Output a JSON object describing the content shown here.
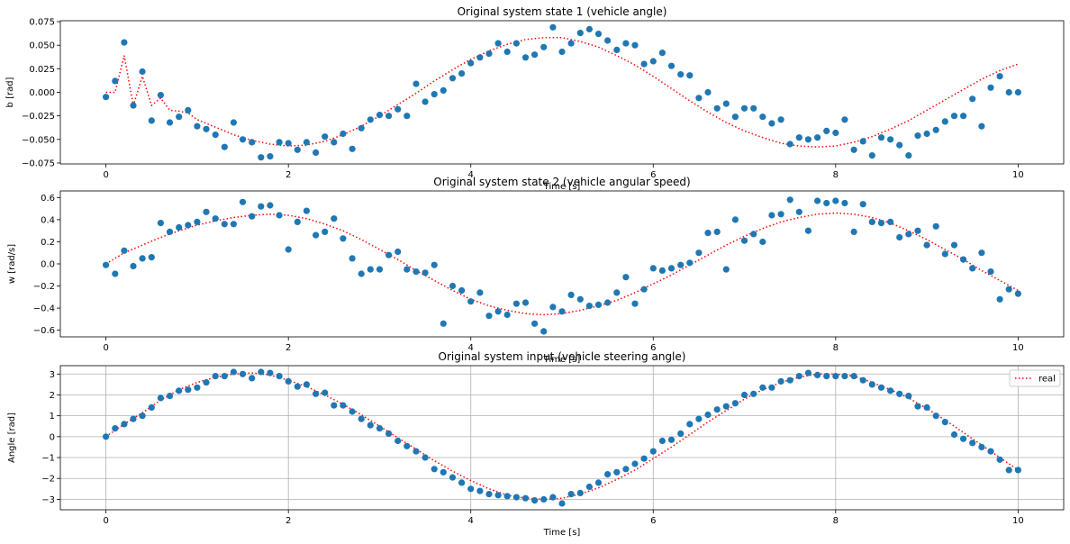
{
  "chart_data": [
    {
      "type": "scatter",
      "title": "Original system state 1 (vehicle angle)",
      "xlabel": "Time [s]",
      "ylabel": "b [rad]",
      "xlim": [
        -0.5,
        10.5
      ],
      "ylim": [
        -0.076,
        0.076
      ],
      "xticks": [
        0,
        2,
        4,
        6,
        8,
        10
      ],
      "xtick_labels": [
        "0",
        "2",
        "4",
        "6",
        "8",
        "10"
      ],
      "yticks": [
        -0.075,
        -0.05,
        -0.025,
        0.0,
        0.025,
        0.05,
        0.075
      ],
      "ytick_labels": [
        "−0.075",
        "−0.050",
        "−0.025",
        "0.000",
        "0.025",
        "0.050",
        "0.075"
      ],
      "grid": false,
      "legend": null,
      "series": [
        {
          "kind": "line",
          "style": "dotted",
          "color": "#ff0000",
          "x": [
            0,
            0.1,
            0.2,
            0.3,
            0.4,
            0.5,
            0.6,
            0.7,
            0.8,
            0.9,
            1.0,
            1.2,
            1.4,
            1.6,
            1.8,
            2.0,
            2.2,
            2.4,
            2.6,
            2.8,
            3.0,
            3.2,
            3.4,
            3.6,
            3.8,
            4.0,
            4.2,
            4.4,
            4.6,
            4.8,
            5.0,
            5.2,
            5.4,
            5.6,
            5.8,
            6.0,
            6.2,
            6.4,
            6.6,
            6.8,
            7.0,
            7.2,
            7.4,
            7.6,
            7.8,
            8.0,
            8.2,
            8.4,
            8.6,
            8.8,
            9.0,
            9.2,
            9.4,
            9.6,
            9.8,
            10.0
          ],
          "y": [
            0.0,
            0.0,
            0.039,
            -0.014,
            0.017,
            -0.014,
            -0.006,
            -0.019,
            -0.02,
            -0.022,
            -0.029,
            -0.037,
            -0.045,
            -0.051,
            -0.055,
            -0.057,
            -0.056,
            -0.052,
            -0.045,
            -0.036,
            -0.025,
            -0.013,
            -0.001,
            0.012,
            0.024,
            0.035,
            0.044,
            0.051,
            0.056,
            0.058,
            0.058,
            0.054,
            0.048,
            0.039,
            0.029,
            0.017,
            0.004,
            -0.009,
            -0.021,
            -0.032,
            -0.041,
            -0.048,
            -0.054,
            -0.057,
            -0.058,
            -0.057,
            -0.053,
            -0.047,
            -0.039,
            -0.03,
            -0.019,
            -0.008,
            0.003,
            0.014,
            0.023,
            0.03
          ]
        },
        {
          "kind": "scatter",
          "color": "#1f77b4",
          "x": [
            0.0,
            0.1,
            0.2,
            0.3,
            0.4,
            0.5,
            0.6,
            0.7,
            0.8,
            0.9,
            1.0,
            1.1,
            1.2,
            1.3,
            1.4,
            1.5,
            1.6,
            1.7,
            1.8,
            1.9,
            2.0,
            2.1,
            2.2,
            2.3,
            2.4,
            2.5,
            2.6,
            2.7,
            2.8,
            2.9,
            3.0,
            3.1,
            3.2,
            3.3,
            3.4,
            3.5,
            3.6,
            3.7,
            3.8,
            3.9,
            4.0,
            4.1,
            4.2,
            4.3,
            4.4,
            4.5,
            4.6,
            4.7,
            4.8,
            4.9,
            5.0,
            5.1,
            5.2,
            5.3,
            5.4,
            5.5,
            5.6,
            5.7,
            5.8,
            5.9,
            6.0,
            6.1,
            6.2,
            6.3,
            6.4,
            6.5,
            6.6,
            6.7,
            6.8,
            6.9,
            7.0,
            7.1,
            7.2,
            7.3,
            7.4,
            7.5,
            7.6,
            7.7,
            7.8,
            7.9,
            8.0,
            8.1,
            8.2,
            8.3,
            8.4,
            8.5,
            8.6,
            8.7,
            8.8,
            8.9,
            9.0,
            9.1,
            9.2,
            9.3,
            9.4,
            9.5,
            9.6,
            9.7,
            9.8,
            9.9,
            10.0
          ],
          "y": [
            -0.005,
            0.012,
            0.053,
            -0.014,
            0.022,
            -0.03,
            -0.003,
            -0.032,
            -0.026,
            -0.019,
            -0.036,
            -0.039,
            -0.045,
            -0.058,
            -0.032,
            -0.05,
            -0.053,
            -0.069,
            -0.068,
            -0.053,
            -0.054,
            -0.061,
            -0.053,
            -0.064,
            -0.047,
            -0.053,
            -0.044,
            -0.06,
            -0.038,
            -0.029,
            -0.024,
            -0.025,
            -0.018,
            -0.025,
            0.009,
            -0.01,
            -0.002,
            0.002,
            0.015,
            0.02,
            0.031,
            0.037,
            0.041,
            0.052,
            0.043,
            0.052,
            0.037,
            0.04,
            0.048,
            0.069,
            0.043,
            0.052,
            0.063,
            0.067,
            0.062,
            0.055,
            0.045,
            0.052,
            0.05,
            0.03,
            0.033,
            0.042,
            0.028,
            0.019,
            0.018,
            -0.006,
            0.0,
            -0.017,
            -0.012,
            -0.026,
            -0.017,
            -0.017,
            -0.026,
            -0.033,
            -0.029,
            -0.055,
            -0.048,
            -0.05,
            -0.048,
            -0.041,
            -0.043,
            -0.029,
            -0.061,
            -0.052,
            -0.067,
            -0.048,
            -0.05,
            -0.056,
            -0.067,
            -0.046,
            -0.044,
            -0.04,
            -0.031,
            -0.025,
            -0.025,
            -0.007,
            -0.036,
            0.005,
            0.017,
            0.0,
            0.0
          ]
        }
      ]
    },
    {
      "type": "scatter",
      "title": "Original system state 2 (vehicle angular speed)",
      "xlabel": "Time [s]",
      "ylabel": "w [rad/s]",
      "xlim": [
        -0.5,
        10.5
      ],
      "ylim": [
        -0.66,
        0.66
      ],
      "xticks": [
        0,
        2,
        4,
        6,
        8,
        10
      ],
      "xtick_labels": [
        "0",
        "2",
        "4",
        "6",
        "8",
        "10"
      ],
      "yticks": [
        -0.6,
        -0.4,
        -0.2,
        0.0,
        0.2,
        0.4,
        0.6
      ],
      "ytick_labels": [
        "−0.6",
        "−0.4",
        "−0.2",
        "0.0",
        "0.2",
        "0.4",
        "0.6"
      ],
      "grid": false,
      "legend": null,
      "series": [
        {
          "kind": "line",
          "style": "dotted",
          "color": "#ff0000",
          "x": [
            0,
            0.2,
            0.4,
            0.6,
            0.8,
            1.0,
            1.2,
            1.4,
            1.6,
            1.8,
            2.0,
            2.2,
            2.4,
            2.6,
            2.8,
            3.0,
            3.2,
            3.4,
            3.6,
            3.8,
            4.0,
            4.2,
            4.4,
            4.6,
            4.8,
            5.0,
            5.2,
            5.4,
            5.6,
            5.8,
            6.0,
            6.2,
            6.4,
            6.6,
            6.8,
            7.0,
            7.2,
            7.4,
            7.6,
            7.8,
            8.0,
            8.2,
            8.4,
            8.6,
            8.8,
            9.0,
            9.2,
            9.4,
            9.6,
            9.8,
            10.0
          ],
          "y": [
            0.0,
            0.1,
            0.17,
            0.24,
            0.3,
            0.35,
            0.39,
            0.42,
            0.44,
            0.45,
            0.44,
            0.41,
            0.36,
            0.3,
            0.22,
            0.13,
            0.04,
            -0.06,
            -0.15,
            -0.24,
            -0.32,
            -0.38,
            -0.42,
            -0.45,
            -0.46,
            -0.45,
            -0.42,
            -0.38,
            -0.33,
            -0.26,
            -0.18,
            -0.1,
            -0.01,
            0.08,
            0.17,
            0.25,
            0.32,
            0.38,
            0.42,
            0.45,
            0.46,
            0.45,
            0.42,
            0.37,
            0.3,
            0.22,
            0.13,
            0.04,
            -0.06,
            -0.15,
            -0.24
          ]
        },
        {
          "kind": "scatter",
          "color": "#1f77b4",
          "x": [
            0.0,
            0.1,
            0.2,
            0.3,
            0.4,
            0.5,
            0.6,
            0.7,
            0.8,
            0.9,
            1.0,
            1.1,
            1.2,
            1.3,
            1.4,
            1.5,
            1.6,
            1.7,
            1.8,
            1.9,
            2.0,
            2.1,
            2.2,
            2.3,
            2.4,
            2.5,
            2.6,
            2.7,
            2.8,
            2.9,
            3.0,
            3.1,
            3.2,
            3.3,
            3.4,
            3.5,
            3.6,
            3.7,
            3.8,
            3.9,
            4.0,
            4.1,
            4.2,
            4.3,
            4.4,
            4.5,
            4.6,
            4.7,
            4.8,
            4.9,
            5.0,
            5.1,
            5.2,
            5.3,
            5.4,
            5.5,
            5.6,
            5.7,
            5.8,
            5.9,
            6.0,
            6.1,
            6.2,
            6.3,
            6.4,
            6.5,
            6.6,
            6.7,
            6.8,
            6.9,
            7.0,
            7.1,
            7.2,
            7.3,
            7.4,
            7.5,
            7.6,
            7.7,
            7.8,
            7.9,
            8.0,
            8.1,
            8.2,
            8.3,
            8.4,
            8.5,
            8.6,
            8.7,
            8.8,
            8.9,
            9.0,
            9.1,
            9.2,
            9.3,
            9.4,
            9.5,
            9.6,
            9.7,
            9.8,
            9.9,
            10.0
          ],
          "y": [
            -0.01,
            -0.09,
            0.12,
            -0.02,
            0.05,
            0.06,
            0.37,
            0.29,
            0.33,
            0.35,
            0.38,
            0.47,
            0.41,
            0.36,
            0.36,
            0.56,
            0.43,
            0.52,
            0.53,
            0.44,
            0.13,
            0.38,
            0.48,
            0.26,
            0.29,
            0.41,
            0.23,
            0.05,
            -0.09,
            -0.05,
            -0.05,
            0.08,
            0.11,
            -0.05,
            -0.07,
            -0.08,
            -0.01,
            -0.54,
            -0.2,
            -0.24,
            -0.34,
            -0.26,
            -0.47,
            -0.43,
            -0.46,
            -0.36,
            -0.35,
            -0.54,
            -0.61,
            -0.39,
            -0.43,
            -0.28,
            -0.32,
            -0.38,
            -0.37,
            -0.35,
            -0.26,
            -0.12,
            -0.36,
            -0.23,
            -0.04,
            -0.06,
            -0.04,
            -0.01,
            0.01,
            0.1,
            0.28,
            0.29,
            -0.05,
            0.4,
            0.21,
            0.27,
            0.2,
            0.44,
            0.45,
            0.58,
            0.47,
            0.3,
            0.57,
            0.55,
            0.57,
            0.55,
            0.29,
            0.54,
            0.38,
            0.37,
            0.38,
            0.24,
            0.27,
            0.3,
            0.17,
            0.34,
            0.09,
            0.17,
            0.04,
            -0.04,
            0.1,
            -0.07,
            -0.32,
            -0.23,
            -0.27
          ]
        }
      ]
    },
    {
      "type": "scatter",
      "title": "Original system input (vehicle steering angle)",
      "xlabel": "Time [s]",
      "ylabel": "Angle [rad]",
      "xlim": [
        -0.5,
        10.5
      ],
      "ylim": [
        -3.5,
        3.4
      ],
      "xticks": [
        0,
        2,
        4,
        6,
        8,
        10
      ],
      "xtick_labels": [
        "0",
        "2",
        "4",
        "6",
        "8",
        "10"
      ],
      "yticks": [
        -3,
        -2,
        -1,
        0,
        1,
        2,
        3
      ],
      "ytick_labels": [
        "−3",
        "−2",
        "−1",
        "0",
        "1",
        "2",
        "3"
      ],
      "grid": true,
      "legend": {
        "position": "top-right",
        "entries": [
          "real"
        ]
      },
      "series": [
        {
          "name": "real",
          "kind": "line",
          "style": "dotted",
          "color": "#ff0000",
          "x": [
            0,
            0.2,
            0.4,
            0.6,
            0.8,
            1.0,
            1.2,
            1.4,
            1.6,
            1.8,
            2.0,
            2.2,
            2.4,
            2.6,
            2.8,
            3.0,
            3.2,
            3.4,
            3.6,
            3.8,
            4.0,
            4.2,
            4.4,
            4.6,
            4.8,
            5.0,
            5.2,
            5.4,
            5.6,
            5.8,
            6.0,
            6.2,
            6.4,
            6.6,
            6.8,
            7.0,
            7.2,
            7.4,
            7.6,
            7.8,
            8.0,
            8.2,
            8.4,
            8.6,
            8.8,
            9.0,
            9.2,
            9.4,
            9.6,
            9.8,
            10.0
          ],
          "y": [
            0.0,
            0.6,
            1.15,
            1.75,
            2.25,
            2.6,
            2.85,
            3.0,
            3.05,
            2.95,
            2.7,
            2.4,
            2.0,
            1.55,
            1.05,
            0.5,
            -0.05,
            -0.6,
            -1.15,
            -1.65,
            -2.1,
            -2.5,
            -2.8,
            -2.95,
            -3.0,
            -2.95,
            -2.75,
            -2.45,
            -2.05,
            -1.6,
            -1.05,
            -0.5,
            0.1,
            0.7,
            1.25,
            1.8,
            2.25,
            2.6,
            2.85,
            3.0,
            3.0,
            2.9,
            2.6,
            2.25,
            1.85,
            1.35,
            0.8,
            0.2,
            -0.4,
            -1.0,
            -1.6
          ]
        },
        {
          "kind": "scatter",
          "color": "#1f77b4",
          "x": [
            0.0,
            0.1,
            0.2,
            0.3,
            0.4,
            0.5,
            0.6,
            0.7,
            0.8,
            0.9,
            1.0,
            1.1,
            1.2,
            1.3,
            1.4,
            1.5,
            1.6,
            1.7,
            1.8,
            1.9,
            2.0,
            2.1,
            2.2,
            2.3,
            2.4,
            2.5,
            2.6,
            2.7,
            2.8,
            2.9,
            3.0,
            3.1,
            3.2,
            3.3,
            3.4,
            3.5,
            3.6,
            3.7,
            3.8,
            3.9,
            4.0,
            4.1,
            4.2,
            4.3,
            4.4,
            4.5,
            4.6,
            4.7,
            4.8,
            4.9,
            5.0,
            5.1,
            5.2,
            5.3,
            5.4,
            5.5,
            5.6,
            5.7,
            5.8,
            5.9,
            6.0,
            6.1,
            6.2,
            6.3,
            6.4,
            6.5,
            6.6,
            6.7,
            6.8,
            6.9,
            7.0,
            7.1,
            7.2,
            7.3,
            7.4,
            7.5,
            7.6,
            7.7,
            7.8,
            7.9,
            8.0,
            8.1,
            8.2,
            8.3,
            8.4,
            8.5,
            8.6,
            8.7,
            8.8,
            8.9,
            9.0,
            9.1,
            9.2,
            9.3,
            9.4,
            9.5,
            9.6,
            9.7,
            9.8,
            9.9,
            10.0
          ],
          "y": [
            0.0,
            0.4,
            0.6,
            0.85,
            1.0,
            1.4,
            1.85,
            1.95,
            2.2,
            2.25,
            2.35,
            2.6,
            2.9,
            2.9,
            3.1,
            3.0,
            2.8,
            3.1,
            3.05,
            2.9,
            2.65,
            2.4,
            2.5,
            2.05,
            2.1,
            1.5,
            1.5,
            1.2,
            0.85,
            0.55,
            0.4,
            0.15,
            -0.2,
            -0.45,
            -0.7,
            -1.0,
            -1.55,
            -1.7,
            -1.95,
            -2.2,
            -2.5,
            -2.6,
            -2.75,
            -2.8,
            -2.85,
            -2.9,
            -2.95,
            -3.05,
            -3.0,
            -2.9,
            -3.2,
            -2.75,
            -2.7,
            -2.4,
            -2.2,
            -1.8,
            -1.7,
            -1.55,
            -1.3,
            -1.05,
            -0.7,
            -0.2,
            -0.15,
            0.15,
            0.6,
            0.85,
            1.05,
            1.3,
            1.45,
            1.6,
            2.0,
            2.05,
            2.35,
            2.35,
            2.65,
            2.7,
            2.9,
            3.05,
            2.95,
            2.9,
            2.9,
            2.9,
            2.9,
            2.7,
            2.5,
            2.35,
            2.2,
            2.05,
            1.95,
            1.45,
            1.4,
            1.0,
            0.7,
            0.1,
            -0.1,
            -0.3,
            -0.5,
            -0.7,
            -1.1,
            -1.6,
            -1.6
          ]
        }
      ]
    }
  ]
}
